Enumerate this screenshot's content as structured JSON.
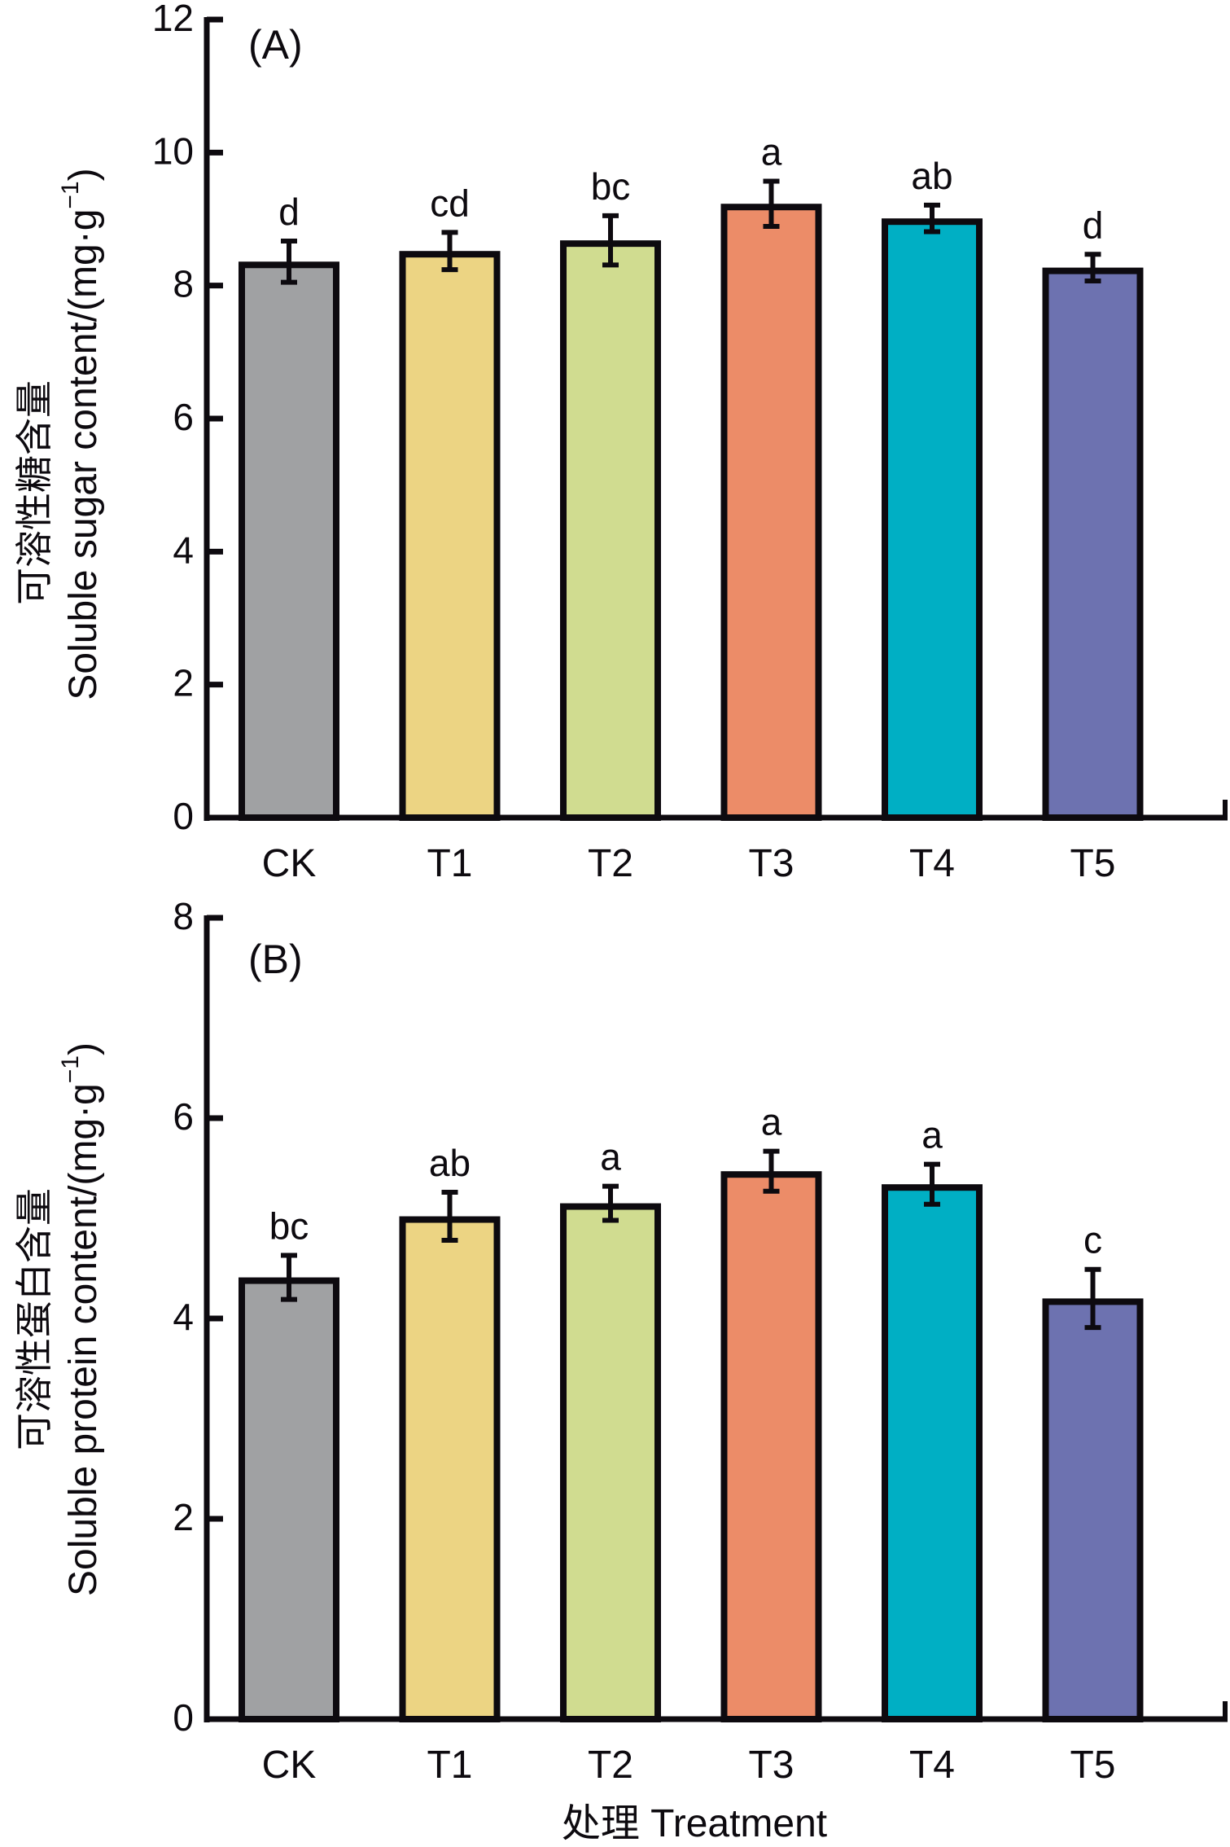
{
  "chart_data": [
    {
      "type": "bar",
      "panel_label": "(A)",
      "title": "",
      "xlabel": "",
      "ylabel_cn": "可溶性糖含量",
      "ylabel": "Soluble sugar content/(mg·g⁻¹)",
      "ylim": [
        0,
        12
      ],
      "yticks": [
        "0",
        "2",
        "4",
        "6",
        "8",
        "10",
        "12"
      ],
      "ytick_values": [
        0,
        2,
        4,
        6,
        8,
        10,
        12
      ],
      "categories": [
        "CK",
        "T1",
        "T2",
        "T3",
        "T4",
        "T5"
      ],
      "values": [
        8.36,
        8.52,
        8.68,
        9.23,
        9.01,
        8.27
      ],
      "errors": [
        0.31,
        0.28,
        0.37,
        0.34,
        0.2,
        0.2
      ],
      "significance": [
        "d",
        "cd",
        "bc",
        "a",
        "ab",
        "d"
      ],
      "colors": [
        "#a0a1a3",
        "#ecd483",
        "#d0dc90",
        "#ec8c68",
        "#00afc4",
        "#6d72b0"
      ],
      "grid": false
    },
    {
      "type": "bar",
      "panel_label": "(B)",
      "title": "",
      "xlabel_cn": "处理",
      "xlabel": "处理 Treatment",
      "ylabel_cn": "可溶性蛋白含量",
      "ylabel": "Soluble protein content/(mg·g⁻¹)",
      "ylim": [
        0,
        8
      ],
      "yticks": [
        "0",
        "2",
        "4",
        "6",
        "8"
      ],
      "ytick_values": [
        0,
        2,
        4,
        6,
        8
      ],
      "categories": [
        "CK",
        "T1",
        "T2",
        "T3",
        "T4",
        "T5"
      ],
      "values": [
        4.41,
        5.02,
        5.15,
        5.47,
        5.34,
        4.2
      ],
      "errors": [
        0.22,
        0.24,
        0.17,
        0.2,
        0.2,
        0.29
      ],
      "significance": [
        "bc",
        "ab",
        "a",
        "a",
        "a",
        "c"
      ],
      "colors": [
        "#a0a1a3",
        "#ecd483",
        "#d0dc90",
        "#ec8c68",
        "#00afc4",
        "#6d72b0"
      ],
      "grid": false
    }
  ],
  "panels": {
    "a": {
      "label": "(A)",
      "ylabel_cn": "可溶性糖含量",
      "ylabel_en": "Soluble sugar content/(mg·g",
      "ylabel_sup": "−1",
      "ylabel_close": ")"
    },
    "b": {
      "label": "(B)",
      "ylabel_cn": "可溶性蛋白含量",
      "ylabel_en": "Soluble protein content/(mg·g",
      "ylabel_sup": "−1",
      "ylabel_close": ")"
    }
  },
  "xaxis_title": "处理 Treatment"
}
